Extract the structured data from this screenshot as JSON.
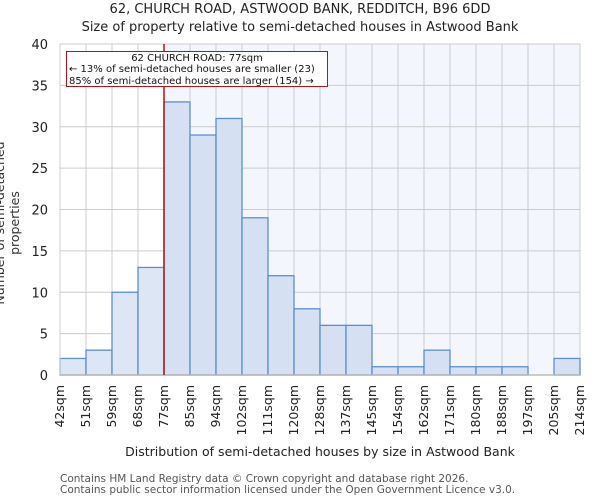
{
  "header": {
    "title": "62, CHURCH ROAD, ASTWOOD BANK, REDDITCH, B96 6DD",
    "subtitle": "Size of property relative to semi-detached houses in Astwood Bank"
  },
  "annotation": {
    "line1": "62 CHURCH ROAD: 77sqm",
    "line2": "← 13% of semi-detached houses are smaller (23)",
    "line3": "85% of semi-detached houses are larger (154) →"
  },
  "footer": {
    "line1": "Contains HM Land Registry data © Crown copyright and database right 2026.",
    "line2": "Contains public sector information licensed under the Open Government Licence v3.0."
  },
  "colors": {
    "bar_fill_left": "#dde6f4",
    "bar_fill_right": "#d5e1f3",
    "bar_stroke": "#5b8fd0",
    "highlight_bg": "#f3f6fd",
    "marker_line": "#b5121b",
    "grid": "#cccccc"
  },
  "chart_data": {
    "type": "bar",
    "title": "62, CHURCH ROAD, ASTWOOD BANK, REDDITCH, B96 6DD",
    "subtitle": "Size of property relative to semi-detached houses in Astwood Bank",
    "xlabel": "Distribution of semi-detached houses by size in Astwood Bank",
    "ylabel": "Number of semi-detached properties",
    "categories": [
      "42sqm",
      "51sqm",
      "59sqm",
      "68sqm",
      "77sqm",
      "85sqm",
      "94sqm",
      "102sqm",
      "111sqm",
      "120sqm",
      "128sqm",
      "137sqm",
      "145sqm",
      "154sqm",
      "162sqm",
      "171sqm",
      "180sqm",
      "188sqm",
      "197sqm",
      "205sqm",
      "214sqm"
    ],
    "values": [
      2,
      3,
      10,
      13,
      33,
      29,
      31,
      19,
      12,
      8,
      6,
      6,
      1,
      1,
      3,
      1,
      1,
      1,
      0,
      2
    ],
    "ylim": [
      0,
      40
    ],
    "yticks": [
      0,
      5,
      10,
      15,
      20,
      25,
      30,
      35,
      40
    ],
    "grid": true,
    "marker": {
      "value_sqm": 77,
      "label": "62 CHURCH ROAD: 77sqm"
    }
  }
}
